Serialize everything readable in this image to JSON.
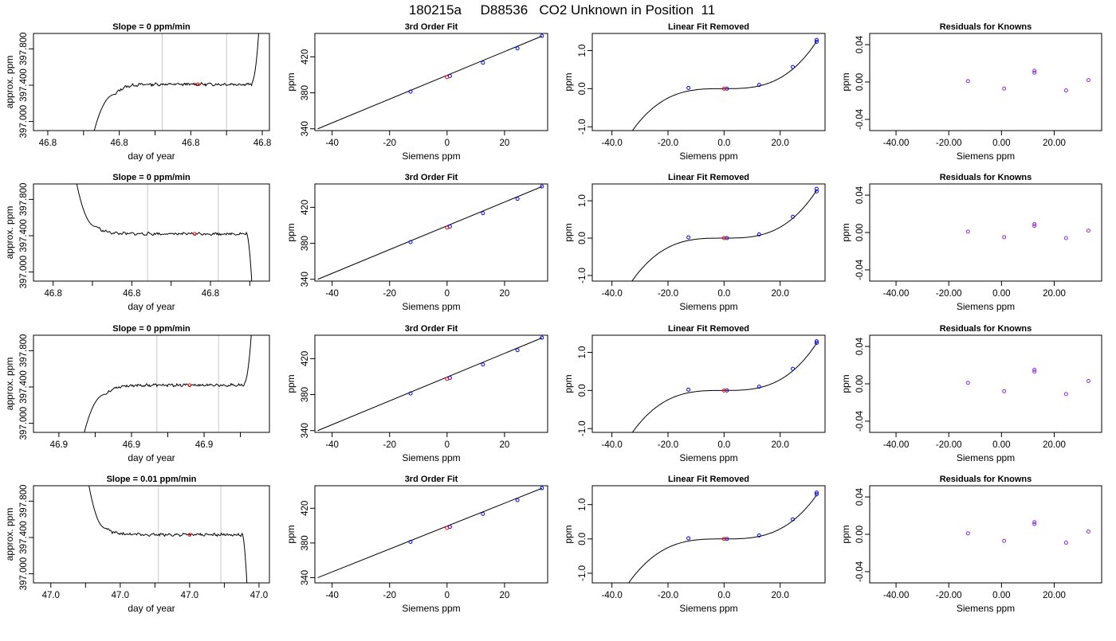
{
  "figure_title": "180215a     D88536   CO2 Unknown in Position  11",
  "colors": {
    "data": "#0000ff",
    "unknown": "#ff0000",
    "residual": "#8a2be2",
    "line": "#000000",
    "window": "#c8c8c8"
  },
  "chart_data": [
    {
      "type": "line",
      "row": 1,
      "panel": "timeseries",
      "title": "Slope =  0  ppm/min",
      "xlabel": "day of year",
      "ylabel": "approx. ppm",
      "xlim": [
        46.7816,
        46.7882
      ],
      "ylim": [
        396.9,
        397.97
      ],
      "xticks": [
        46.782,
        46.784,
        46.786,
        46.788
      ],
      "yticks": [
        397.0,
        397.4,
        397.8
      ],
      "window": [
        46.7852,
        46.787
      ],
      "mean_point": [
        46.7862,
        397.41
      ],
      "ramp_in": {
        "x0": 46.7833,
        "x1": 46.7839,
        "from": 396.9,
        "to": 397.3
      },
      "plateau": [
        46.7839,
        46.7877
      ],
      "ramp_out": {
        "x0": 46.7877,
        "x1": 46.7879,
        "from": 397.43,
        "to": 397.97
      }
    },
    {
      "type": "scatter",
      "row": 1,
      "panel": "fit",
      "title": "3rd Order Fit",
      "xlabel": "Siemens ppm",
      "ylabel": "ppm",
      "xlim": [
        -46,
        35
      ],
      "ylim": [
        338,
        446
      ],
      "xticks": [
        -40,
        -20,
        0,
        20
      ],
      "yticks": [
        340,
        380,
        420
      ],
      "line": [
        [
          -45,
          340
        ],
        [
          33,
          443
        ]
      ],
      "knowns": [
        [
          -12.7,
          381.3
        ],
        [
          1,
          398.6
        ],
        [
          12.5,
          413.5
        ],
        [
          24.5,
          429.4
        ],
        [
          33,
          443.2
        ]
      ],
      "unknown": [
        0,
        397.4
      ]
    },
    {
      "type": "scatter",
      "row": 1,
      "panel": "linear_removed",
      "title": "Linear Fit Removed",
      "xlabel": "Siemens ppm",
      "ylabel": "ppm",
      "xlim": [
        -47,
        36
      ],
      "ylim": [
        -1.1,
        1.45
      ],
      "xticks": [
        -40,
        -20,
        0,
        20
      ],
      "yticks": [
        -1.0,
        0.0,
        1.0
      ],
      "cubic": {
        "a": 3.3e-05,
        "c": 0
      },
      "knowns": [
        [
          -12.7,
          0.02
        ],
        [
          1,
          0.0
        ],
        [
          12.5,
          0.1
        ],
        [
          24.5,
          0.57
        ],
        [
          33,
          1.23
        ],
        [
          33,
          1.28
        ]
      ],
      "unknown": [
        0,
        0.0
      ]
    },
    {
      "type": "scatter",
      "row": 1,
      "panel": "residuals",
      "title": "Residuals for Knowns",
      "xlabel": "Siemens ppm",
      "ylabel": "ppm",
      "xlim": [
        -50,
        38
      ],
      "ylim": [
        -0.052,
        0.052
      ],
      "xticks": [
        -40,
        -20,
        0,
        20
      ],
      "yticks": [
        -0.04,
        0.0,
        0.04
      ],
      "points": [
        [
          -12.7,
          0.001
        ],
        [
          1,
          -0.007
        ],
        [
          12.5,
          0.01
        ],
        [
          12.5,
          0.012
        ],
        [
          24.5,
          -0.009
        ],
        [
          33,
          0.002
        ]
      ]
    },
    {
      "type": "line",
      "row": 2,
      "panel": "timeseries",
      "title": "Slope =  0  ppm/min",
      "xlabel": "day of year",
      "ylabel": "approx. ppm",
      "xlim": [
        46.8185,
        46.8245
      ],
      "ylim": [
        396.9,
        397.97
      ],
      "xticks": [
        46.819,
        46.821,
        46.823
      ],
      "yticks": [
        397.0,
        397.4,
        397.8
      ],
      "window": [
        46.8214,
        46.8232
      ],
      "mean_point": [
        46.8226,
        397.42
      ],
      "ramp_in": {
        "x0": 46.8196,
        "x1": 46.8201,
        "from": 397.97,
        "to": 397.5
      },
      "plateau": [
        46.8201,
        46.8239
      ],
      "ramp_out": {
        "x0": 46.8239,
        "x1": 46.82405,
        "from": 397.44,
        "to": 396.9
      }
    },
    {
      "type": "scatter",
      "row": 2,
      "panel": "fit",
      "title": "3rd Order Fit",
      "xlabel": "Siemens ppm",
      "ylabel": "ppm",
      "xlim": [
        -46,
        35
      ],
      "ylim": [
        338,
        446
      ],
      "xticks": [
        -40,
        -20,
        0,
        20
      ],
      "yticks": [
        340,
        380,
        420
      ],
      "line": [
        [
          -45,
          340
        ],
        [
          33,
          443
        ]
      ],
      "knowns": [
        [
          -12.7,
          381.3
        ],
        [
          1,
          398.6
        ],
        [
          12.5,
          413.5
        ],
        [
          24.5,
          429.4
        ],
        [
          33,
          443.2
        ]
      ],
      "unknown": [
        0,
        397.4
      ]
    },
    {
      "type": "scatter",
      "row": 2,
      "panel": "linear_removed",
      "title": "Linear Fit Removed",
      "xlabel": "Siemens ppm",
      "ylabel": "ppm",
      "xlim": [
        -47,
        36
      ],
      "ylim": [
        -1.15,
        1.45
      ],
      "xticks": [
        -40,
        -20,
        0,
        20
      ],
      "yticks": [
        -1.0,
        0.0,
        1.0
      ],
      "cubic": {
        "a": 3.4e-05,
        "c": 0
      },
      "knowns": [
        [
          -12.7,
          0.02
        ],
        [
          1,
          0.0
        ],
        [
          12.5,
          0.1
        ],
        [
          24.5,
          0.57
        ],
        [
          33,
          1.25
        ],
        [
          33,
          1.32
        ]
      ],
      "unknown": [
        0,
        0.0
      ]
    },
    {
      "type": "scatter",
      "row": 2,
      "panel": "residuals",
      "title": "Residuals for Knowns",
      "xlabel": "Siemens ppm",
      "ylabel": "ppm",
      "xlim": [
        -50,
        38
      ],
      "ylim": [
        -0.052,
        0.052
      ],
      "xticks": [
        -40,
        -20,
        0,
        20
      ],
      "yticks": [
        -0.04,
        0.0,
        0.04
      ],
      "points": [
        [
          -12.7,
          0.001
        ],
        [
          1,
          -0.005
        ],
        [
          12.5,
          0.007
        ],
        [
          12.5,
          0.009
        ],
        [
          24.5,
          -0.006
        ],
        [
          33,
          0.002
        ]
      ]
    },
    {
      "type": "line",
      "row": 3,
      "panel": "timeseries",
      "title": "Slope =  0  ppm/min",
      "xlabel": "day of year",
      "ylabel": "approx. ppm",
      "xlim": [
        46.9173,
        46.9238
      ],
      "ylim": [
        396.9,
        397.97
      ],
      "xticks": [
        46.918,
        46.92,
        46.922
      ],
      "yticks": [
        397.0,
        397.4,
        397.8
      ],
      "window": [
        46.9207,
        46.9224
      ],
      "mean_point": [
        46.9216,
        397.42
      ],
      "ramp_in": {
        "x0": 46.9187,
        "x1": 46.9193,
        "from": 396.9,
        "to": 397.32
      },
      "plateau": [
        46.9193,
        46.9231
      ],
      "ramp_out": {
        "x0": 46.9231,
        "x1": 46.9233,
        "from": 397.44,
        "to": 397.97
      }
    },
    {
      "type": "scatter",
      "row": 3,
      "panel": "fit",
      "title": "3rd Order Fit",
      "xlabel": "Siemens ppm",
      "ylabel": "ppm",
      "xlim": [
        -46,
        35
      ],
      "ylim": [
        338,
        446
      ],
      "xticks": [
        -40,
        -20,
        0,
        20
      ],
      "yticks": [
        340,
        380,
        420
      ],
      "line": [
        [
          -45,
          340
        ],
        [
          33,
          443
        ]
      ],
      "knowns": [
        [
          -12.7,
          381.3
        ],
        [
          1,
          398.6
        ],
        [
          12.5,
          413.5
        ],
        [
          24.5,
          429.4
        ],
        [
          33,
          443.2
        ]
      ],
      "unknown": [
        0,
        397.4
      ]
    },
    {
      "type": "scatter",
      "row": 3,
      "panel": "linear_removed",
      "title": "Linear Fit Removed",
      "xlabel": "Siemens ppm",
      "ylabel": "ppm",
      "xlim": [
        -47,
        36
      ],
      "ylim": [
        -1.1,
        1.45
      ],
      "xticks": [
        -40,
        -20,
        0,
        20
      ],
      "yticks": [
        -1.0,
        0.0,
        1.0
      ],
      "cubic": {
        "a": 3.3e-05,
        "c": 0
      },
      "knowns": [
        [
          -12.7,
          0.02
        ],
        [
          1,
          0.0
        ],
        [
          12.5,
          0.1
        ],
        [
          24.5,
          0.57
        ],
        [
          33,
          1.25
        ],
        [
          33,
          1.29
        ]
      ],
      "unknown": [
        0,
        0.0
      ]
    },
    {
      "type": "scatter",
      "row": 3,
      "panel": "residuals",
      "title": "Residuals for Knowns",
      "xlabel": "Siemens ppm",
      "ylabel": "ppm",
      "xlim": [
        -50,
        38
      ],
      "ylim": [
        -0.052,
        0.052
      ],
      "xticks": [
        -40,
        -20,
        0,
        20
      ],
      "yticks": [
        -0.04,
        0.0,
        0.04
      ],
      "points": [
        [
          -12.7,
          0.001
        ],
        [
          1,
          -0.008
        ],
        [
          12.5,
          0.013
        ],
        [
          12.5,
          0.015
        ],
        [
          24.5,
          -0.011
        ],
        [
          33,
          0.003
        ]
      ]
    },
    {
      "type": "line",
      "row": 4,
      "panel": "timeseries",
      "title": "Slope =  0.01  ppm/min",
      "xlabel": "day of year",
      "ylabel": "approx. ppm",
      "xlim": [
        46.9535,
        46.9603
      ],
      "ylim": [
        396.9,
        397.97
      ],
      "xticks": [
        46.954,
        46.956,
        46.958,
        46.96
      ],
      "yticks": [
        397.0,
        397.4,
        397.8
      ],
      "window": [
        46.9571,
        46.9589
      ],
      "mean_point": [
        46.958,
        397.43
      ],
      "ramp_in": {
        "x0": 46.9551,
        "x1": 46.9556,
        "from": 397.97,
        "to": 397.5
      },
      "plateau": [
        46.9556,
        46.9595
      ],
      "ramp_out": {
        "x0": 46.9595,
        "x1": 46.95965,
        "from": 397.45,
        "to": 396.9
      }
    },
    {
      "type": "scatter",
      "row": 4,
      "panel": "fit",
      "title": "3rd Order Fit",
      "xlabel": "Siemens ppm",
      "ylabel": "ppm",
      "xlim": [
        -46,
        35
      ],
      "ylim": [
        334,
        446
      ],
      "xticks": [
        -40,
        -20,
        0,
        20
      ],
      "yticks": [
        340,
        380,
        420
      ],
      "line": [
        [
          -45,
          340
        ],
        [
          33,
          443
        ]
      ],
      "knowns": [
        [
          -12.7,
          381.3
        ],
        [
          1,
          398.6
        ],
        [
          12.5,
          413.5
        ],
        [
          24.5,
          429.4
        ],
        [
          33,
          443.2
        ]
      ],
      "unknown": [
        0,
        397.4
      ]
    },
    {
      "type": "scatter",
      "row": 4,
      "panel": "linear_removed",
      "title": "Linear Fit Removed",
      "xlabel": "Siemens ppm",
      "ylabel": "ppm",
      "xlim": [
        -47,
        36
      ],
      "ylim": [
        -1.28,
        1.55
      ],
      "xticks": [
        -40,
        -20,
        0,
        20
      ],
      "yticks": [
        -1.0,
        0.0,
        1.0
      ],
      "cubic": {
        "a": 3.4e-05,
        "c": 0
      },
      "knowns": [
        [
          -12.7,
          0.02
        ],
        [
          1,
          0.0
        ],
        [
          12.5,
          0.1
        ],
        [
          24.5,
          0.57
        ],
        [
          33,
          1.3
        ],
        [
          33,
          1.35
        ]
      ],
      "unknown": [
        0,
        0.0
      ]
    },
    {
      "type": "scatter",
      "row": 4,
      "panel": "residuals",
      "title": "Residuals for Knowns",
      "xlabel": "Siemens ppm",
      "ylabel": "ppm",
      "xlim": [
        -50,
        38
      ],
      "ylim": [
        -0.052,
        0.052
      ],
      "xticks": [
        -40,
        -20,
        0,
        20
      ],
      "yticks": [
        -0.04,
        0.0,
        0.04
      ],
      "points": [
        [
          -12.7,
          0.001
        ],
        [
          1,
          -0.007
        ],
        [
          12.5,
          0.011
        ],
        [
          12.5,
          0.013
        ],
        [
          24.5,
          -0.009
        ],
        [
          33,
          0.003
        ]
      ]
    }
  ]
}
